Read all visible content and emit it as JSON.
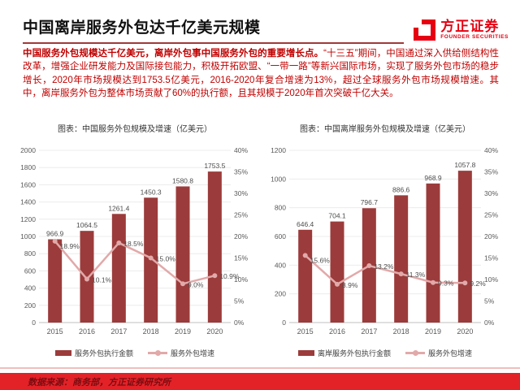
{
  "header": {
    "title": "中国离岸服务外包达千亿美元规模",
    "logo_cn": "方正证券",
    "logo_en": "FOUNDER SECURITIES"
  },
  "summary": {
    "lead": "中国服务外包规模达千亿美元，离岸外包事中国服务外包的重要增长点。",
    "body": "“十三五”期间，中国通过深入供给侧结构性改革，增强企业研发能力及国际接包能力，积极开拓欧盟、“一带一路”等新兴国际市场，实现了服务外包市场的稳步增长，2020年市场规模达到1753.5亿美元，2016-2020年复合增速为13%，超过全球服务外包市场规模增速。其中，离岸服务外包为整体市场贡献了60%的执行额，且其规模于2020年首次突破千亿大关。"
  },
  "colors": {
    "bar": "#9C3B3B",
    "line": "#E2A9A9",
    "paragraph_red": "#C00000",
    "footer_bg": "#E32228",
    "footer_text": "#7A0C10",
    "logo_red": "#E60012",
    "underline": "#A03A38"
  },
  "chart_data": [
    {
      "type": "bar",
      "title": "图表：中国服务外包规模及增速（亿美元）",
      "categories": [
        "2015",
        "2016",
        "2017",
        "2018",
        "2019",
        "2020"
      ],
      "series": [
        {
          "name": "服务外包执行金额",
          "type": "bar",
          "axis": "left",
          "values": [
            966.9,
            1064.5,
            1261.4,
            1450.3,
            1580.8,
            1753.5
          ]
        },
        {
          "name": "服务外包增速",
          "type": "line",
          "axis": "right",
          "unit": "%",
          "values": [
            18.9,
            10.1,
            18.5,
            15.0,
            9.0,
            10.9
          ]
        }
      ],
      "left_axis": {
        "min": 0,
        "max": 2000,
        "step": 200
      },
      "right_axis": {
        "min": 0,
        "max": 40,
        "step": 5,
        "suffix": "%"
      },
      "grid": true,
      "legend_position": "bottom"
    },
    {
      "type": "bar",
      "title": "图表：中国离岸服务外包规模及增速（亿美元）",
      "categories": [
        "2015",
        "2016",
        "2017",
        "2018",
        "2019",
        "2020"
      ],
      "series": [
        {
          "name": "离岸服务外包执行金额",
          "type": "bar",
          "axis": "left",
          "values": [
            646.4,
            704.1,
            796.7,
            886.6,
            968.9,
            1057.8
          ]
        },
        {
          "name": "服务外包增速",
          "type": "line",
          "axis": "right",
          "unit": "%",
          "values": [
            15.6,
            8.9,
            13.2,
            11.3,
            9.3,
            9.2
          ]
        }
      ],
      "left_axis": {
        "min": 0,
        "max": 1200,
        "step": 200
      },
      "right_axis": {
        "min": 0,
        "max": 40,
        "step": 5,
        "suffix": "%"
      },
      "grid": true,
      "legend_position": "bottom"
    }
  ],
  "footer": {
    "source": "数据来源：商务部，方正证券研究所"
  }
}
